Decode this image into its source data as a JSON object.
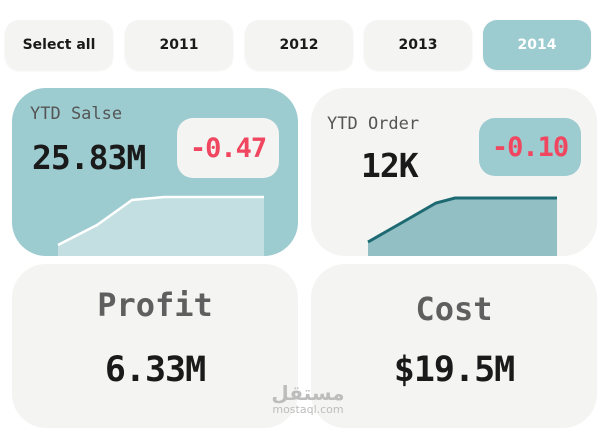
{
  "slicer": {
    "items": [
      {
        "label": "Select all",
        "selected": false
      },
      {
        "label": "2011",
        "selected": false
      },
      {
        "label": "2012",
        "selected": false
      },
      {
        "label": "2013",
        "selected": false
      },
      {
        "label": "2014",
        "selected": true
      }
    ]
  },
  "cards": {
    "ytd_sales": {
      "title": "YTD Salse",
      "value": "25.83M",
      "delta": "-0.47"
    },
    "ytd_order": {
      "title": "YTD Order",
      "value": "12K",
      "delta": "-0.10"
    },
    "profit": {
      "title": "Profit",
      "value": "6.33M"
    },
    "cost": {
      "title": "Cost",
      "value": "$19.5M"
    }
  },
  "watermark": {
    "arabic": "مستقل",
    "latin": "mostaql.com"
  },
  "colors": {
    "accent_teal": "#9ccbd0",
    "card_bg": "#f4f4f3",
    "negative_red": "#f0465f",
    "order_line": "#1d6a73",
    "order_area": "#92bfc3"
  }
}
